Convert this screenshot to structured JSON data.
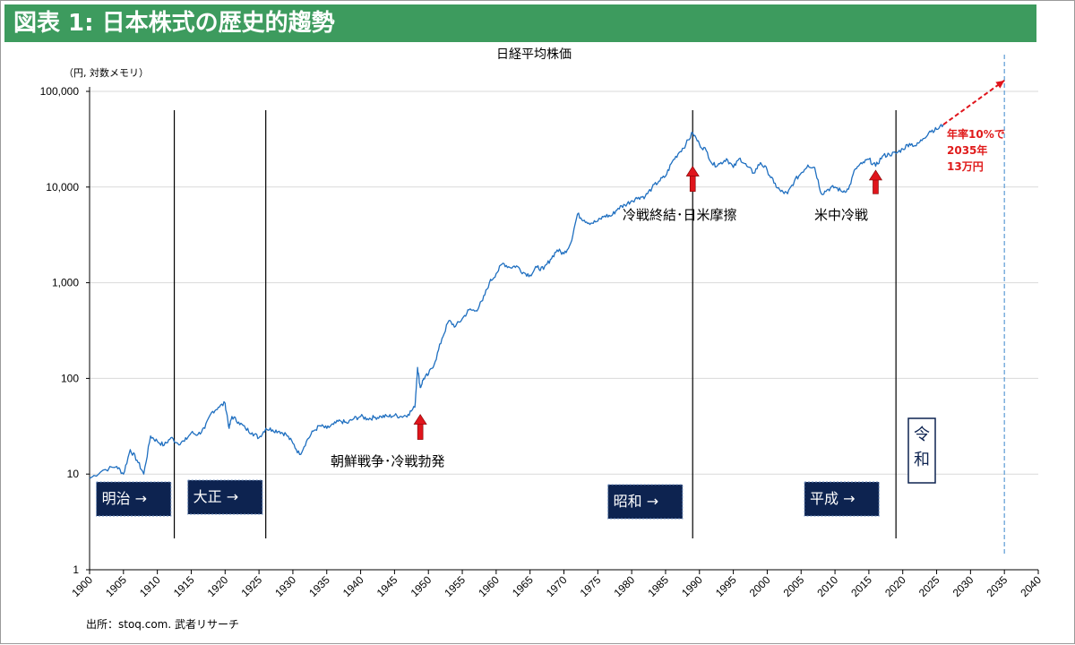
{
  "header": {
    "title": "図表 1: 日本株式の歴史的趨勢"
  },
  "footer": {
    "source": "出所：stoq.com. 武者リサーチ"
  },
  "colors": {
    "header_bg": "#3d9b5e",
    "series": "#1f6fc0",
    "arrow": "#e0151c",
    "era_box": "#0d2350",
    "projection_text": "#e01b1b"
  },
  "icons": {
    "era_arrow": "arrow-right-icon",
    "event_arrow": "arrow-up-icon"
  },
  "chart_data": {
    "type": "line",
    "title": "日経平均株価",
    "ylabel": "（円, 対数メモリ）",
    "yscale": "log",
    "ylim": [
      1,
      100000
    ],
    "xlim": [
      1900,
      2040
    ],
    "yticks": [
      1,
      10,
      100,
      1000,
      10000,
      100000
    ],
    "ytick_labels": [
      "1",
      "10",
      "100",
      "1,000",
      "10,000",
      "100,000"
    ],
    "xticks": [
      1900,
      1905,
      1910,
      1915,
      1920,
      1925,
      1930,
      1935,
      1940,
      1945,
      1950,
      1955,
      1960,
      1965,
      1970,
      1975,
      1980,
      1985,
      1990,
      1995,
      2000,
      2005,
      2010,
      2015,
      2020,
      2025,
      2030,
      2035,
      2040
    ],
    "grid": "horizontal",
    "series": [
      {
        "points": [
          [
            1900,
            9
          ],
          [
            1902,
            11
          ],
          [
            1904,
            12
          ],
          [
            1905,
            10
          ],
          [
            1906,
            18
          ],
          [
            1907,
            14
          ],
          [
            1908,
            10
          ],
          [
            1909,
            25
          ],
          [
            1910,
            22
          ],
          [
            1911,
            20
          ],
          [
            1912,
            24
          ],
          [
            1913,
            21
          ],
          [
            1914,
            22
          ],
          [
            1915,
            27
          ],
          [
            1916,
            26
          ],
          [
            1917,
            30
          ],
          [
            1918,
            44
          ],
          [
            1919,
            50
          ],
          [
            1920,
            55
          ],
          [
            1920.6,
            30
          ],
          [
            1921,
            40
          ],
          [
            1922,
            35
          ],
          [
            1923,
            30
          ],
          [
            1924,
            27
          ],
          [
            1925,
            24
          ],
          [
            1926,
            30
          ],
          [
            1927,
            29
          ],
          [
            1928,
            28
          ],
          [
            1929,
            26
          ],
          [
            1930,
            21
          ],
          [
            1931,
            16
          ],
          [
            1932,
            22
          ],
          [
            1933,
            28
          ],
          [
            1934,
            32
          ],
          [
            1935,
            30
          ],
          [
            1936,
            33
          ],
          [
            1937,
            36
          ],
          [
            1938,
            34
          ],
          [
            1939,
            38
          ],
          [
            1940,
            40
          ],
          [
            1941,
            38
          ],
          [
            1942,
            39
          ],
          [
            1943,
            40
          ],
          [
            1944,
            40
          ],
          [
            1945,
            41
          ],
          [
            1946,
            40
          ],
          [
            1947,
            42
          ],
          [
            1948,
            50
          ],
          [
            1948.4,
            130
          ],
          [
            1948.8,
            80
          ],
          [
            1949.3,
            100
          ],
          [
            1950,
            110
          ],
          [
            1951,
            150
          ],
          [
            1952,
            260
          ],
          [
            1953,
            400
          ],
          [
            1954,
            350
          ],
          [
            1955,
            420
          ],
          [
            1956,
            520
          ],
          [
            1957,
            510
          ],
          [
            1958,
            650
          ],
          [
            1959,
            1000
          ],
          [
            1960,
            1250
          ],
          [
            1961,
            1600
          ],
          [
            1962,
            1450
          ],
          [
            1963,
            1500
          ],
          [
            1964,
            1280
          ],
          [
            1965,
            1200
          ],
          [
            1966,
            1450
          ],
          [
            1967,
            1380
          ],
          [
            1968,
            1750
          ],
          [
            1969,
            2200
          ],
          [
            1970,
            2000
          ],
          [
            1971,
            2600
          ],
          [
            1972,
            5200
          ],
          [
            1973,
            4500
          ],
          [
            1974,
            4200
          ],
          [
            1975,
            4400
          ],
          [
            1976,
            5000
          ],
          [
            1977,
            5000
          ],
          [
            1978,
            6000
          ],
          [
            1979,
            6500
          ],
          [
            1980,
            7200
          ],
          [
            1981,
            7800
          ],
          [
            1982,
            8000
          ],
          [
            1983,
            9800
          ],
          [
            1984,
            11500
          ],
          [
            1985,
            13000
          ],
          [
            1986,
            18500
          ],
          [
            1987,
            23000
          ],
          [
            1988,
            28000
          ],
          [
            1989,
            37000
          ],
          [
            1990,
            28000
          ],
          [
            1991,
            24000
          ],
          [
            1992,
            17000
          ],
          [
            1993,
            17500
          ],
          [
            1994,
            19800
          ],
          [
            1995,
            16000
          ],
          [
            1996,
            20000
          ],
          [
            1997,
            16500
          ],
          [
            1998,
            14000
          ],
          [
            1999,
            18000
          ],
          [
            2000,
            15000
          ],
          [
            2001,
            11000
          ],
          [
            2002,
            9000
          ],
          [
            2003,
            8500
          ],
          [
            2004,
            11500
          ],
          [
            2005,
            14000
          ],
          [
            2006,
            17000
          ],
          [
            2007,
            16000
          ],
          [
            2008,
            8500
          ],
          [
            2009,
            9500
          ],
          [
            2010,
            10000
          ],
          [
            2011,
            9000
          ],
          [
            2012,
            9500
          ],
          [
            2013,
            15500
          ],
          [
            2014,
            17500
          ],
          [
            2015,
            19500
          ],
          [
            2016,
            16500
          ],
          [
            2017,
            21000
          ],
          [
            2018,
            22000
          ],
          [
            2019,
            22500
          ],
          [
            2020,
            25000
          ],
          [
            2021,
            28500
          ],
          [
            2022,
            27000
          ],
          [
            2023,
            32000
          ],
          [
            2024,
            38500
          ],
          [
            2025,
            40000
          ],
          [
            2026,
            45000
          ]
        ]
      }
    ],
    "projection": {
      "from": [
        2026,
        45000
      ],
      "to": [
        2035,
        130000
      ],
      "target_year": 2035,
      "label": [
        "年率10%で",
        "2035年",
        "13万円"
      ]
    },
    "era_dividers": [
      1912.5,
      1926,
      1989,
      2019
    ],
    "eras": [
      {
        "label": "明治",
        "years": [
          1901,
          1912
        ]
      },
      {
        "label": "大正",
        "years": [
          1914.5,
          1925.5
        ]
      },
      {
        "label": "昭和",
        "years": [
          1976.5,
          1987.5
        ]
      },
      {
        "label": "平成",
        "years": [
          2005.5,
          2016.5
        ]
      },
      {
        "label": "令和",
        "vertical": [
          "令",
          "和"
        ]
      }
    ],
    "annotations": [
      {
        "label": "朝鮮戦争･冷戦勃発",
        "x": 1948.8,
        "y_from": 23,
        "y_to": 42
      },
      {
        "label": "冷戦終結･日米摩擦",
        "x": 1989,
        "y_from": 9000,
        "y_to": 16500
      },
      {
        "label": "米中冷戦",
        "x": 2016,
        "y_from": 8500,
        "y_to": 15000
      }
    ]
  }
}
